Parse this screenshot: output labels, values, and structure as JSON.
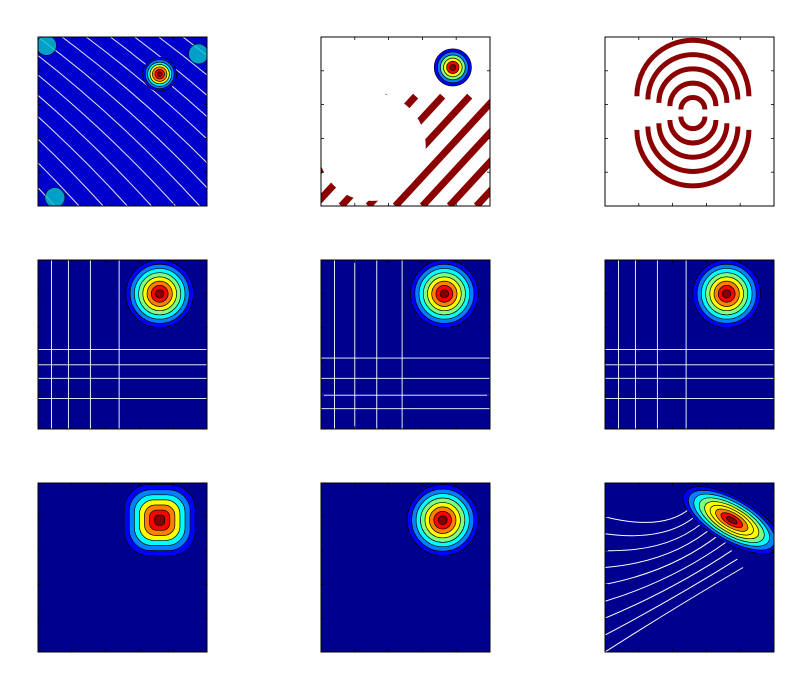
{
  "figure": {
    "background": "#ffffff",
    "frame_color": "#000000"
  },
  "palette": {
    "jet": [
      "#00008f",
      "#0000ff",
      "#0080ff",
      "#00ffff",
      "#80ff80",
      "#ffff00",
      "#ff8000",
      "#ff0000",
      "#800000"
    ],
    "contour_line_light": "#ffffff",
    "contour_line_dark": "#000000"
  },
  "chart_data": [
    {
      "type": "contour",
      "panel": 1,
      "row": 1,
      "col": 1,
      "background": "#0000cc",
      "features": [
        "diagonal-streaks",
        "corner-peak"
      ],
      "peak": {
        "x": 0.72,
        "y": 0.78,
        "radius": 0.1,
        "levels": 7
      },
      "streaks": {
        "count": 14,
        "direction": "ne-sw"
      },
      "xlim": [
        0,
        1
      ],
      "ylim": [
        0,
        1
      ],
      "grid": false
    },
    {
      "type": "contour",
      "panel": 2,
      "row": 1,
      "col": 2,
      "background": "#ffffff",
      "features": [
        "dark-red-stripes",
        "corner-peak"
      ],
      "peak": {
        "x": 0.78,
        "y": 0.82,
        "radius": 0.11,
        "levels": 6
      },
      "stripes": {
        "count": 10,
        "color": "#8b0000"
      },
      "xlim": [
        0,
        1
      ],
      "ylim": [
        0,
        1
      ],
      "grid": false
    },
    {
      "type": "contour",
      "panel": 3,
      "row": 1,
      "col": 3,
      "background": "#ffffff",
      "features": [
        "dark-red-arcs"
      ],
      "arcs": {
        "center_x": 0.52,
        "center_y": 0.55,
        "count": 5,
        "color": "#8b0000"
      },
      "xlim": [
        0,
        1
      ],
      "ylim": [
        0,
        1
      ],
      "grid": false
    },
    {
      "type": "contour",
      "panel": 4,
      "row": 2,
      "col": 1,
      "background": "#00008f",
      "features": [
        "grid-lines",
        "corner-peak"
      ],
      "peak": {
        "x": 0.72,
        "y": 0.8,
        "radius": 0.2,
        "levels": 8
      },
      "grid_lines": {
        "vertical": [
          0.08,
          0.18,
          0.31,
          0.48
        ],
        "horizontal": [
          0.18,
          0.3,
          0.38,
          0.47
        ]
      },
      "xlim": [
        0,
        1
      ],
      "ylim": [
        0,
        1
      ],
      "grid": false
    },
    {
      "type": "contour",
      "panel": 5,
      "row": 2,
      "col": 2,
      "background": "#00008f",
      "features": [
        "grid-lines",
        "corner-peak"
      ],
      "peak": {
        "x": 0.73,
        "y": 0.8,
        "radius": 0.2,
        "levels": 8
      },
      "grid_lines": {
        "vertical": [
          0.08,
          0.2,
          0.33,
          0.48
        ],
        "horizontal": [
          0.12,
          0.2,
          0.3,
          0.42
        ]
      },
      "xlim": [
        0,
        1
      ],
      "ylim": [
        0,
        1
      ],
      "grid": false
    },
    {
      "type": "contour",
      "panel": 6,
      "row": 2,
      "col": 3,
      "background": "#00008f",
      "features": [
        "grid-lines",
        "corner-peak"
      ],
      "peak": {
        "x": 0.72,
        "y": 0.8,
        "radius": 0.2,
        "levels": 8
      },
      "grid_lines": {
        "vertical": [
          0.08,
          0.18,
          0.31,
          0.48
        ],
        "horizontal": [
          0.18,
          0.3,
          0.38,
          0.47
        ]
      },
      "xlim": [
        0,
        1
      ],
      "ylim": [
        0,
        1
      ],
      "grid": false
    },
    {
      "type": "contour",
      "panel": 7,
      "row": 3,
      "col": 1,
      "background": "#00008f",
      "features": [
        "corner-peak-square"
      ],
      "peak": {
        "x": 0.72,
        "y": 0.78,
        "radius": 0.21,
        "levels": 7
      },
      "xlim": [
        0,
        1
      ],
      "ylim": [
        0,
        1
      ],
      "grid": false
    },
    {
      "type": "contour",
      "panel": 8,
      "row": 3,
      "col": 2,
      "background": "#00008f",
      "features": [
        "corner-peak"
      ],
      "peak": {
        "x": 0.72,
        "y": 0.78,
        "radius": 0.21,
        "levels": 8
      },
      "xlim": [
        0,
        1
      ],
      "ylim": [
        0,
        1
      ],
      "grid": false
    },
    {
      "type": "contour",
      "panel": 9,
      "row": 3,
      "col": 3,
      "background": "#00008f",
      "features": [
        "elongated-peak",
        "diagonal-ripples"
      ],
      "peak": {
        "x": 0.75,
        "y": 0.78,
        "radius": 0.24,
        "levels": 9
      },
      "ripples": {
        "count": 9,
        "direction": "ne-sw"
      },
      "xlim": [
        0,
        1
      ],
      "ylim": [
        0,
        1
      ],
      "grid": false
    }
  ]
}
